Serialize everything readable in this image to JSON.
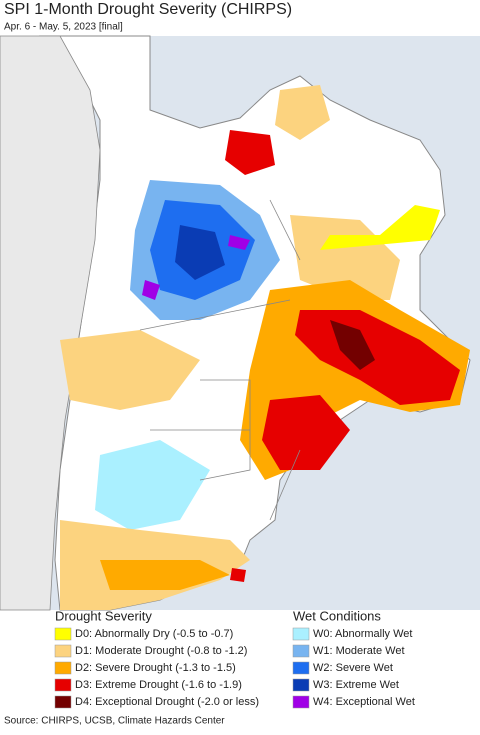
{
  "title": "SPI 1-Month Drought Severity (CHIRPS)",
  "subtitle": "Apr. 6 - May. 5, 2023 [final]",
  "legend": {
    "drought": {
      "heading": "Drought Severity",
      "items": [
        {
          "label": "D0: Abnormally Dry (-0.5 to -0.7)",
          "color": "#ffff00"
        },
        {
          "label": "D1: Moderate Drought (-0.8 to -1.2)",
          "color": "#fcd37f"
        },
        {
          "label": "D2: Severe Drought (-1.3 to -1.5)",
          "color": "#ffaa00"
        },
        {
          "label": "D3: Extreme Drought (-1.6 to -1.9)",
          "color": "#e60000"
        },
        {
          "label": "D4: Exceptional Drought (-2.0 or less)",
          "color": "#730000"
        }
      ]
    },
    "wet": {
      "heading": "Wet Conditions",
      "items": [
        {
          "label": "W0: Abnormally Wet",
          "color": "#aaf0ff"
        },
        {
          "label": "W1: Moderate Wet",
          "color": "#78b4f0"
        },
        {
          "label": "W2: Severe Wet",
          "color": "#1e6ef0"
        },
        {
          "label": "W3: Extreme Wet",
          "color": "#0a3cb4"
        },
        {
          "label": "W4: Exceptional Wet",
          "color": "#a000e6"
        }
      ]
    }
  },
  "source": "Source: CHIRPS, UCSB, Climate Hazards Center"
}
